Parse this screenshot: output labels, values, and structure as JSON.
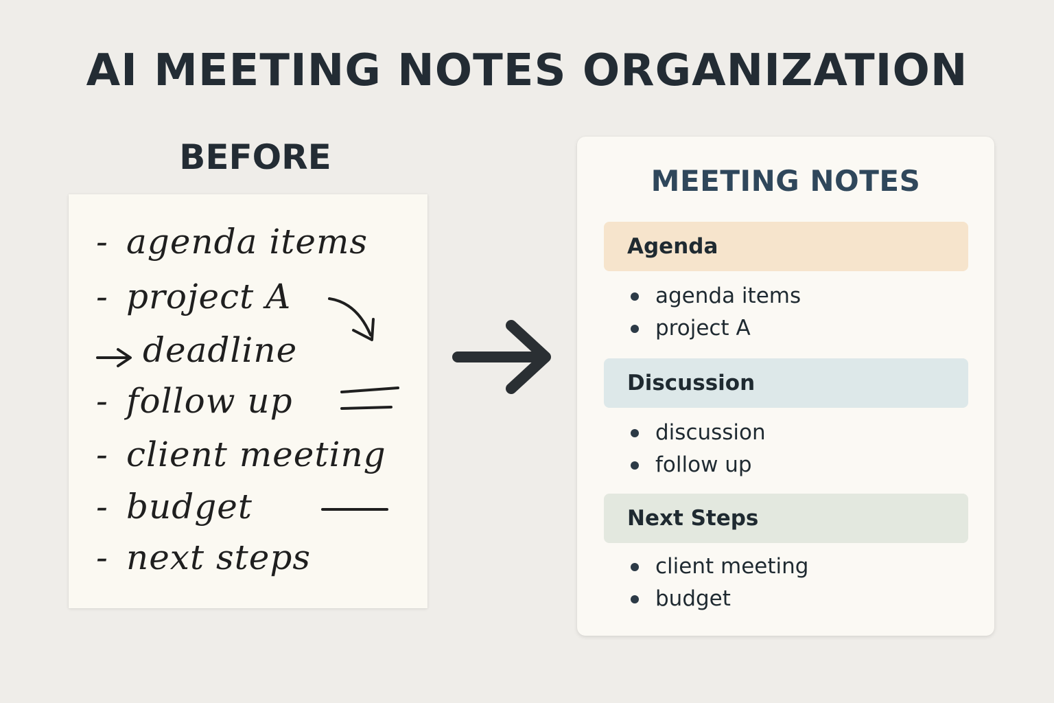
{
  "title": "AI MEETING NOTES ORGANIZATION",
  "before": {
    "label": "BEFORE",
    "handwritten_lines": [
      "agenda items",
      "project A",
      "deadline",
      "follow up",
      "client meeting",
      "budget",
      "next steps"
    ]
  },
  "card": {
    "title": "MEETING NOTES",
    "sections": [
      {
        "header": "Agenda",
        "color": "#f6e4cc",
        "items": [
          "agenda items",
          "project A"
        ]
      },
      {
        "header": "Discussion",
        "color": "#dde8e9",
        "items": [
          "discussion",
          "follow up"
        ]
      },
      {
        "header": "Next Steps",
        "color": "#e3e8df",
        "items": [
          "client meeting",
          "budget"
        ]
      }
    ]
  },
  "colors": {
    "background": "#efede9",
    "text": "#232c34",
    "card_title": "#2f475b"
  }
}
